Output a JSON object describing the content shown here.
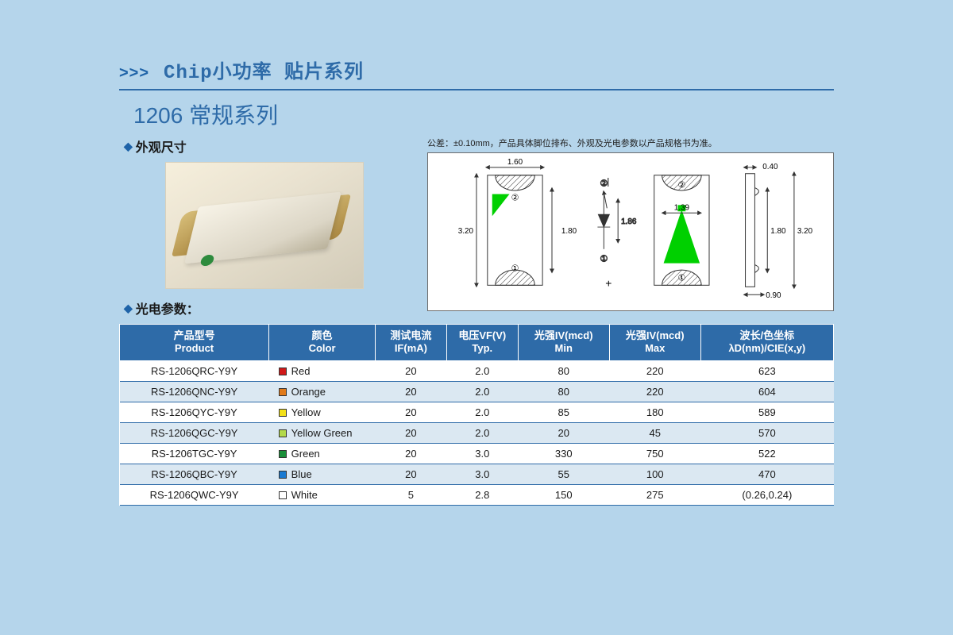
{
  "header": {
    "chevrons": ">>>",
    "title": "Chip小功率  贴片系列",
    "subtitle": "1206 常规系列",
    "section_appearance": "外观尺寸",
    "section_params": "光电参数："
  },
  "tolerance_note": "公差：±0.10mm，产品具体脚位排布、外观及光电参数以产品规格书为准。",
  "diagram": {
    "dims": {
      "body_w": "1.60",
      "body_h_inner": "1.80",
      "body_h_outer": "3.20",
      "cut_h": "1.86",
      "lens_w": "1.39",
      "side_h": "1.80",
      "side_total": "3.20",
      "side_top": "0.40",
      "side_bot": "0.90"
    }
  },
  "table": {
    "columns": [
      "产品型号\nProduct",
      "颜色\nColor",
      "测试电流\nIF(mA)",
      "电压VF(V)\nTyp.",
      "光强IV(mcd)\nMin",
      "光强IV(mcd)\nMax",
      "波长/色坐标\nλD(nm)/CIE(x,y)"
    ],
    "col_widths": [
      "180px",
      "128px",
      "86px",
      "86px",
      "110px",
      "110px",
      "160px"
    ],
    "rows": [
      {
        "product": "RS-1206QRC-Y9Y",
        "color": "Red",
        "swatch": "#d11a1a",
        "if": "20",
        "vf": "2.0",
        "min": "80",
        "max": "220",
        "wl": "623"
      },
      {
        "product": "RS-1206QNC-Y9Y",
        "color": "Orange",
        "swatch": "#e07a1a",
        "if": "20",
        "vf": "2.0",
        "min": "80",
        "max": "220",
        "wl": "604"
      },
      {
        "product": "RS-1206QYC-Y9Y",
        "color": "Yellow",
        "swatch": "#f2e01a",
        "if": "20",
        "vf": "2.0",
        "min": "85",
        "max": "180",
        "wl": "589"
      },
      {
        "product": "RS-1206QGC-Y9Y",
        "color": "Yellow Green",
        "swatch": "#b3d94a",
        "if": "20",
        "vf": "2.0",
        "min": "20",
        "max": "45",
        "wl": "570"
      },
      {
        "product": "RS-1206TGC-Y9Y",
        "color": "Green",
        "swatch": "#1a8f3a",
        "if": "20",
        "vf": "3.0",
        "min": "330",
        "max": "750",
        "wl": "522"
      },
      {
        "product": "RS-1206QBC-Y9Y",
        "color": "Blue",
        "swatch": "#1a7ad1",
        "if": "20",
        "vf": "3.0",
        "min": "55",
        "max": "100",
        "wl": "470"
      },
      {
        "product": "RS-1206QWC-Y9Y",
        "color": "White",
        "swatch": "#ffffff",
        "if": "5",
        "vf": "2.8",
        "min": "150",
        "max": "275",
        "wl": "(0.26,0.24)"
      }
    ]
  },
  "colors": {
    "page_bg": "#b5d5eb",
    "brand": "#2e6ba8",
    "header_bg": "#2e6ba8",
    "row_alt_bg": "#dbe8f2",
    "diagram_green": "#00d000"
  }
}
